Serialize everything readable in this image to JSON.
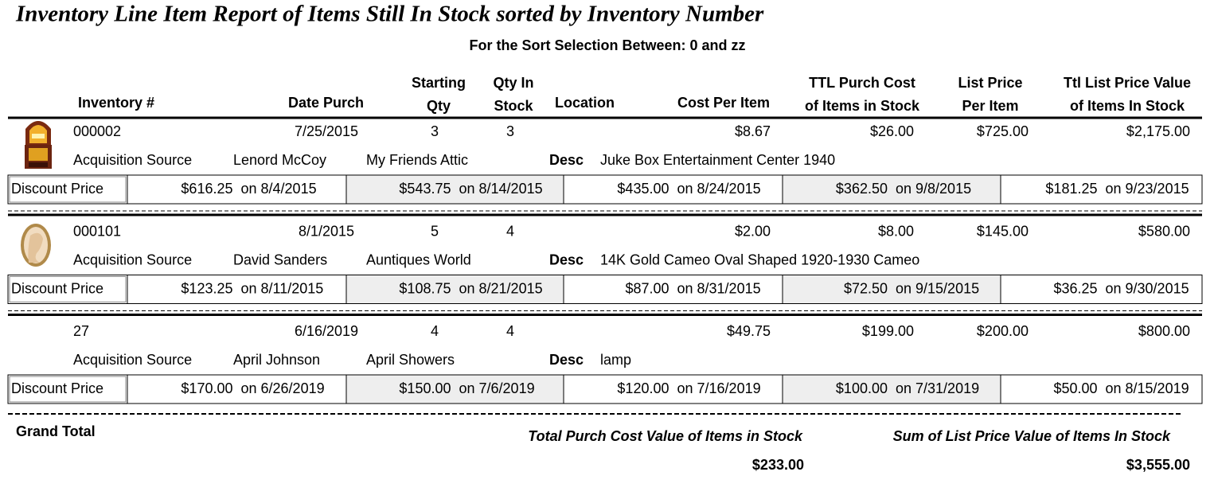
{
  "title": "Inventory Line Item Report of Items Still In Stock sorted by Inventory Number",
  "subtitle": "For the Sort Selection Between: 0 and zz",
  "columns": {
    "inventory": [
      "Inventory #"
    ],
    "date": [
      "Date Purch"
    ],
    "starting_qty": [
      "Starting",
      "Qty"
    ],
    "qty_in_stock": [
      "Qty In",
      "Stock"
    ],
    "location": [
      "Location"
    ],
    "cost": [
      "Cost Per Item"
    ],
    "ttl_purch": [
      "TTL Purch Cost",
      "of Items in Stock"
    ],
    "list_price": [
      "List Price",
      "Per Item"
    ],
    "ttl_list": [
      "Ttl List Price Value",
      "of Items In Stock"
    ]
  },
  "labels": {
    "acquisition": "Acquisition Source",
    "desc": "Desc",
    "discount": "Discount Price"
  },
  "items": [
    {
      "inventory": "000002",
      "date": "7/25/2015",
      "starting_qty": "3",
      "qty_in_stock": "3",
      "cost": "$8.67",
      "ttl_purch": "$26.00",
      "list_price": "$725.00",
      "ttl_list": "$2,175.00",
      "source_name": "Lenord  McCoy",
      "source_place": "My Friends Attic",
      "desc": "Juke Box Entertainment Center 1940",
      "discounts": [
        {
          "price": "$616.25",
          "date": "on 8/4/2015"
        },
        {
          "price": "$543.75",
          "date": "on 8/14/2015"
        },
        {
          "price": "$435.00",
          "date": "on 8/24/2015"
        },
        {
          "price": "$362.50",
          "date": "on 9/8/2015"
        },
        {
          "price": "$181.25",
          "date": "on 9/23/2015"
        }
      ]
    },
    {
      "inventory": "000101",
      "date": "8/1/2015",
      "starting_qty": "5",
      "qty_in_stock": "4",
      "cost": "$2.00",
      "ttl_purch": "$8.00",
      "list_price": "$145.00",
      "ttl_list": "$580.00",
      "source_name": "David  Sanders",
      "source_place": "Auntiques World",
      "desc": "14K Gold Cameo Oval Shaped 1920-1930 Cameo",
      "discounts": [
        {
          "price": "$123.25",
          "date": "on 8/11/2015"
        },
        {
          "price": "$108.75",
          "date": "on 8/21/2015"
        },
        {
          "price": "$87.00",
          "date": "on 8/31/2015"
        },
        {
          "price": "$72.50",
          "date": "on 9/15/2015"
        },
        {
          "price": "$36.25",
          "date": "on 9/30/2015"
        }
      ]
    },
    {
      "inventory": "27",
      "date": "6/16/2019",
      "starting_qty": "4",
      "qty_in_stock": "4",
      "cost": "$49.75",
      "ttl_purch": "$199.00",
      "list_price": "$200.00",
      "ttl_list": "$800.00",
      "source_name": "April  Johnson",
      "source_place": "April Showers",
      "desc": "lamp",
      "discounts": [
        {
          "price": "$170.00",
          "date": "on 6/26/2019"
        },
        {
          "price": "$150.00",
          "date": "on 7/6/2019"
        },
        {
          "price": "$120.00",
          "date": "on 7/16/2019"
        },
        {
          "price": "$100.00",
          "date": "on 7/31/2019"
        },
        {
          "price": "$50.00",
          "date": "on 8/15/2019"
        }
      ]
    }
  ],
  "grand_total": {
    "label": "Grand Total",
    "purch_label": "Total Purch Cost Value of Items in Stock",
    "purch_value": "$233.00",
    "list_label": "Sum of List Price Value of Items In Stock",
    "list_value": "$3,555.00"
  }
}
